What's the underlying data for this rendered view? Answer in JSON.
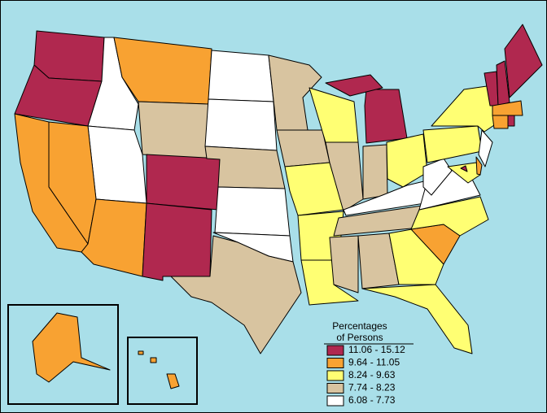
{
  "legend": {
    "title_lines": [
      "Percentages",
      "of Persons"
    ],
    "classes": [
      {
        "label": "11.06 - 15.12",
        "color": "#b0284f"
      },
      {
        "label": "9.64 - 11.05",
        "color": "#f8a232"
      },
      {
        "label": "8.24 - 9.63",
        "color": "#ffff73"
      },
      {
        "label": "7.74 - 8.23",
        "color": "#d8c4a0"
      },
      {
        "label": "6.08 - 7.73",
        "color": "#ffffff"
      }
    ]
  }
}
